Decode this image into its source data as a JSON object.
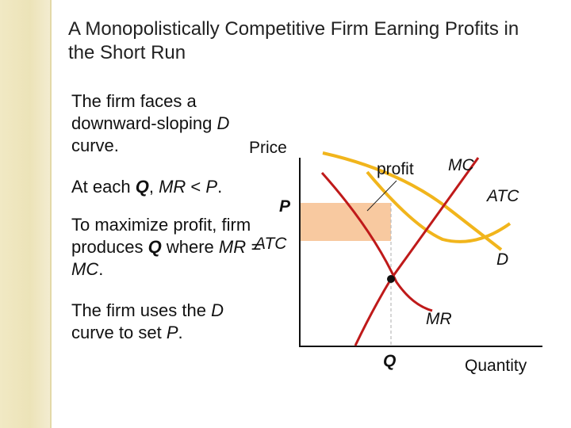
{
  "title": "A Monopolistically Competitive Firm Earning Profits in the Short Run",
  "text": {
    "p1_a": "The firm faces a downward-sloping ",
    "p1_d": "D",
    "p1_b": " curve.",
    "p2_a": "At each ",
    "p2_q": "Q",
    "p2_b": ", ",
    "p2_mr": "MR",
    "p2_c": " < ",
    "p2_p": "P",
    "p2_d": ".",
    "p3_a": "To maximize profit, firm produces ",
    "p3_q": "Q",
    "p3_b": " where ",
    "p3_eq": "MR = MC",
    "p3_c": ".",
    "p4_a": "The firm uses the ",
    "p4_d": "D",
    "p4_b": " curve to set ",
    "p4_p": "P",
    "p4_c": "."
  },
  "diagram": {
    "y_axis_label": "Price",
    "x_axis_label": "Quantity",
    "price_label": "P",
    "atc_level_label": "ATC",
    "quantity_label": "Q",
    "profit_label": "profit",
    "curves": {
      "mc": "MC",
      "atc": "ATC",
      "d": "D",
      "mr": "MR"
    },
    "colors": {
      "demand": "#f1b51c",
      "atc_curve": "#f1b51c",
      "marginal": "#bf1a1a",
      "profit_area": "#f8c9a0",
      "axes": "#111111",
      "guide": "#bbbbbb"
    }
  }
}
